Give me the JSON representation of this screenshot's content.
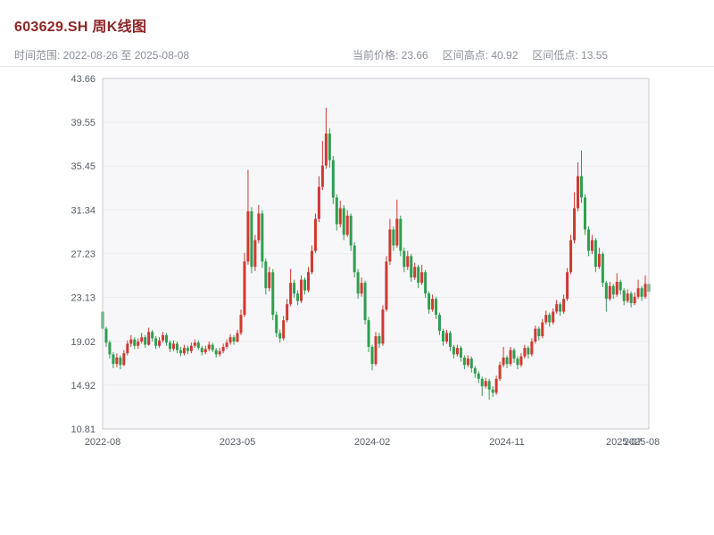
{
  "header": {
    "title": "603629.SH 周K线图",
    "title_color": "#8d2626"
  },
  "subheader": {
    "time_range": "时间范围: 2022-08-26 至 2025-08-08",
    "current_price": "当前价格: 23.66",
    "range_high": "区间高点: 40.92",
    "range_low": "区间低点: 13.55"
  },
  "chart_data": {
    "type": "candlestick",
    "title": "603629.SH 周K线图",
    "period": "weekly",
    "symbol": "603629.SH",
    "current_price": 23.66,
    "range_high": 40.92,
    "range_low": 13.55,
    "ylim": [
      10.81,
      43.66
    ],
    "y_ticks": [
      10.81,
      14.92,
      19.02,
      23.13,
      27.23,
      31.34,
      35.45,
      39.55,
      43.66
    ],
    "x_tick_labels": [
      {
        "index": 0,
        "label": "2022-08"
      },
      {
        "index": 38,
        "label": "2023-05"
      },
      {
        "index": 76,
        "label": "2024-02"
      },
      {
        "index": 114,
        "label": "2024-11"
      },
      {
        "index": 147,
        "label": "2025-07"
      },
      {
        "index": 152,
        "label": "2025-08"
      }
    ],
    "colors": {
      "up": "#cf3a30",
      "down": "#2f9e4f",
      "plot_bg": "#f7f7fa",
      "grid": "#ececf1",
      "frame": "#c9c9d2",
      "tick_text": "#555c66"
    },
    "legend": "none",
    "grid": true,
    "candles_format": [
      "open",
      "high",
      "low",
      "close"
    ],
    "candles": [
      [
        21.8,
        22.1,
        19.6,
        20.2
      ],
      [
        20.2,
        20.4,
        18.5,
        18.9
      ],
      [
        18.9,
        19.1,
        17.4,
        17.8
      ],
      [
        17.8,
        18.0,
        16.5,
        16.9
      ],
      [
        16.9,
        17.9,
        16.6,
        17.5
      ],
      [
        17.5,
        17.7,
        16.4,
        16.8
      ],
      [
        16.8,
        18.2,
        16.7,
        17.9
      ],
      [
        17.9,
        19.1,
        17.7,
        18.8
      ],
      [
        18.8,
        19.6,
        18.5,
        19.2
      ],
      [
        19.2,
        19.4,
        18.3,
        18.6
      ],
      [
        18.6,
        19.3,
        18.3,
        19.0
      ],
      [
        19.0,
        19.8,
        18.8,
        19.4
      ],
      [
        19.4,
        19.6,
        18.4,
        18.7
      ],
      [
        18.7,
        20.3,
        18.6,
        19.9
      ],
      [
        19.9,
        20.1,
        19.0,
        19.3
      ],
      [
        19.3,
        19.5,
        18.3,
        18.6
      ],
      [
        18.6,
        19.4,
        18.4,
        19.1
      ],
      [
        19.1,
        19.9,
        18.9,
        19.6
      ],
      [
        19.6,
        19.8,
        18.6,
        18.9
      ],
      [
        18.9,
        19.1,
        18.0,
        18.3
      ],
      [
        18.3,
        19.1,
        18.1,
        18.8
      ],
      [
        18.8,
        19.0,
        17.9,
        18.2
      ],
      [
        18.2,
        18.5,
        17.6,
        17.9
      ],
      [
        17.9,
        18.7,
        17.7,
        18.4
      ],
      [
        18.4,
        18.6,
        17.8,
        18.1
      ],
      [
        18.1,
        18.9,
        17.9,
        18.6
      ],
      [
        18.6,
        19.2,
        18.4,
        18.9
      ],
      [
        18.9,
        19.1,
        18.2,
        18.4
      ],
      [
        18.4,
        18.6,
        17.7,
        18.0
      ],
      [
        18.0,
        18.6,
        17.8,
        18.3
      ],
      [
        18.3,
        19.0,
        18.1,
        18.7
      ],
      [
        18.7,
        18.9,
        18.0,
        18.2
      ],
      [
        18.2,
        18.4,
        17.5,
        17.8
      ],
      [
        17.8,
        18.4,
        17.6,
        18.1
      ],
      [
        18.1,
        18.8,
        17.9,
        18.5
      ],
      [
        18.5,
        19.2,
        18.3,
        18.9
      ],
      [
        18.9,
        19.7,
        18.7,
        19.4
      ],
      [
        19.4,
        19.6,
        18.7,
        19.0
      ],
      [
        19.0,
        20.1,
        18.9,
        19.8
      ],
      [
        19.8,
        22.0,
        19.6,
        21.5
      ],
      [
        21.5,
        27.3,
        21.3,
        26.5
      ],
      [
        26.5,
        35.1,
        26.2,
        31.2
      ],
      [
        31.2,
        31.6,
        25.4,
        26.0
      ],
      [
        26.0,
        29.0,
        25.6,
        28.5
      ],
      [
        28.5,
        31.8,
        28.2,
        31.0
      ],
      [
        31.0,
        31.3,
        25.9,
        26.5
      ],
      [
        26.5,
        26.8,
        23.4,
        24.0
      ],
      [
        24.0,
        26.0,
        23.7,
        25.5
      ],
      [
        25.5,
        25.8,
        21.0,
        21.5
      ],
      [
        21.5,
        21.8,
        19.4,
        19.8
      ],
      [
        19.8,
        20.1,
        18.9,
        19.3
      ],
      [
        19.3,
        21.4,
        19.1,
        21.0
      ],
      [
        21.0,
        23.0,
        20.8,
        22.5
      ],
      [
        22.5,
        25.8,
        22.3,
        24.5
      ],
      [
        24.5,
        24.8,
        23.1,
        23.5
      ],
      [
        23.5,
        23.8,
        22.4,
        22.8
      ],
      [
        22.8,
        25.2,
        22.6,
        24.8
      ],
      [
        24.8,
        25.0,
        23.4,
        23.8
      ],
      [
        23.8,
        26.0,
        23.6,
        25.5
      ],
      [
        25.5,
        28.0,
        25.3,
        27.5
      ],
      [
        27.5,
        31.0,
        27.3,
        30.5
      ],
      [
        30.5,
        34.5,
        30.2,
        33.5
      ],
      [
        33.5,
        37.8,
        33.2,
        35.5
      ],
      [
        35.5,
        40.92,
        35.2,
        38.5
      ],
      [
        38.5,
        39.0,
        35.3,
        36.0
      ],
      [
        36.0,
        36.4,
        31.9,
        32.5
      ],
      [
        32.5,
        32.8,
        29.4,
        30.0
      ],
      [
        30.0,
        32.2,
        29.7,
        31.5
      ],
      [
        31.5,
        31.8,
        28.5,
        29.0
      ],
      [
        29.0,
        31.3,
        28.8,
        30.8
      ],
      [
        30.8,
        31.0,
        27.5,
        28.0
      ],
      [
        28.0,
        28.3,
        25.0,
        25.5
      ],
      [
        25.5,
        25.8,
        23.0,
        23.5
      ],
      [
        23.5,
        25.0,
        23.2,
        24.5
      ],
      [
        24.5,
        24.7,
        20.6,
        21.0
      ],
      [
        21.0,
        21.3,
        18.0,
        18.5
      ],
      [
        18.5,
        18.7,
        16.3,
        16.9
      ],
      [
        16.9,
        19.9,
        16.7,
        19.5
      ],
      [
        19.5,
        19.8,
        18.4,
        18.8
      ],
      [
        18.8,
        22.4,
        18.6,
        22.0
      ],
      [
        22.0,
        27.0,
        21.8,
        26.5
      ],
      [
        26.5,
        30.5,
        26.2,
        29.5
      ],
      [
        29.5,
        29.8,
        27.5,
        28.0
      ],
      [
        28.0,
        32.3,
        27.8,
        30.5
      ],
      [
        30.5,
        30.8,
        27.0,
        27.5
      ],
      [
        27.5,
        27.8,
        25.5,
        26.0
      ],
      [
        26.0,
        27.5,
        25.7,
        27.0
      ],
      [
        27.0,
        27.2,
        24.6,
        25.0
      ],
      [
        25.0,
        26.4,
        24.8,
        26.0
      ],
      [
        26.0,
        26.2,
        24.0,
        24.5
      ],
      [
        24.5,
        26.2,
        24.3,
        25.5
      ],
      [
        25.5,
        25.7,
        23.1,
        23.5
      ],
      [
        23.5,
        23.7,
        21.6,
        22.0
      ],
      [
        22.0,
        23.4,
        21.8,
        23.0
      ],
      [
        23.0,
        23.2,
        21.1,
        21.5
      ],
      [
        21.5,
        21.7,
        19.6,
        20.0
      ],
      [
        20.0,
        20.2,
        18.6,
        19.0
      ],
      [
        19.0,
        20.1,
        18.8,
        19.8
      ],
      [
        19.8,
        20.0,
        18.1,
        18.5
      ],
      [
        18.5,
        18.7,
        17.4,
        17.8
      ],
      [
        17.8,
        18.7,
        17.6,
        18.4
      ],
      [
        18.4,
        18.6,
        17.1,
        17.5
      ],
      [
        17.5,
        17.7,
        16.4,
        16.8
      ],
      [
        16.8,
        17.7,
        16.6,
        17.4
      ],
      [
        17.4,
        17.6,
        16.1,
        16.5
      ],
      [
        16.5,
        16.7,
        15.6,
        16.0
      ],
      [
        16.0,
        16.2,
        15.1,
        15.5
      ],
      [
        15.5,
        15.7,
        13.9,
        14.8
      ],
      [
        14.8,
        15.6,
        14.6,
        15.3
      ],
      [
        15.3,
        15.5,
        13.55,
        14.5
      ],
      [
        14.5,
        14.8,
        13.8,
        14.2
      ],
      [
        14.2,
        15.8,
        14.0,
        15.5
      ],
      [
        15.5,
        17.1,
        15.3,
        16.8
      ],
      [
        16.8,
        18.5,
        16.6,
        17.5
      ],
      [
        17.5,
        17.7,
        16.5,
        16.9
      ],
      [
        16.9,
        18.5,
        16.7,
        18.2
      ],
      [
        18.2,
        18.4,
        17.0,
        17.4
      ],
      [
        17.4,
        17.6,
        16.4,
        16.8
      ],
      [
        16.8,
        17.9,
        16.6,
        17.6
      ],
      [
        17.6,
        18.7,
        17.4,
        18.4
      ],
      [
        18.4,
        18.6,
        17.4,
        17.8
      ],
      [
        17.8,
        19.3,
        17.6,
        19.0
      ],
      [
        19.0,
        20.5,
        18.8,
        20.2
      ],
      [
        20.2,
        20.4,
        19.1,
        19.5
      ],
      [
        19.5,
        21.1,
        19.3,
        20.8
      ],
      [
        20.8,
        21.9,
        20.6,
        21.5
      ],
      [
        21.5,
        21.7,
        20.4,
        20.8
      ],
      [
        20.8,
        22.1,
        20.6,
        21.8
      ],
      [
        21.8,
        22.9,
        21.6,
        22.5
      ],
      [
        22.5,
        22.7,
        21.4,
        21.8
      ],
      [
        21.8,
        23.4,
        21.6,
        23.0
      ],
      [
        23.0,
        25.9,
        22.8,
        25.5
      ],
      [
        25.5,
        29.0,
        25.3,
        28.5
      ],
      [
        28.5,
        33.0,
        28.2,
        31.5
      ],
      [
        31.5,
        35.8,
        31.2,
        34.5
      ],
      [
        34.5,
        36.9,
        32.0,
        32.5
      ],
      [
        32.5,
        32.8,
        29.0,
        29.5
      ],
      [
        29.5,
        29.8,
        27.0,
        27.5
      ],
      [
        27.5,
        29.0,
        27.2,
        28.5
      ],
      [
        28.5,
        28.7,
        25.5,
        26.0
      ],
      [
        26.0,
        27.8,
        25.8,
        27.2
      ],
      [
        27.2,
        27.4,
        24.1,
        24.5
      ],
      [
        24.5,
        24.7,
        21.8,
        23.0
      ],
      [
        23.0,
        24.6,
        22.8,
        24.2
      ],
      [
        24.2,
        24.4,
        23.0,
        23.4
      ],
      [
        23.4,
        25.4,
        23.2,
        24.6
      ],
      [
        24.6,
        24.8,
        23.4,
        23.8
      ],
      [
        23.8,
        24.0,
        22.4,
        22.8
      ],
      [
        22.8,
        23.9,
        22.6,
        23.5
      ],
      [
        23.5,
        23.7,
        22.2,
        22.6
      ],
      [
        22.6,
        23.6,
        22.4,
        23.2
      ],
      [
        23.2,
        24.8,
        23.0,
        24.0
      ],
      [
        24.0,
        24.2,
        22.8,
        23.2
      ],
      [
        23.2,
        25.2,
        23.0,
        24.4
      ],
      [
        24.4,
        24.6,
        23.2,
        23.66
      ]
    ]
  }
}
